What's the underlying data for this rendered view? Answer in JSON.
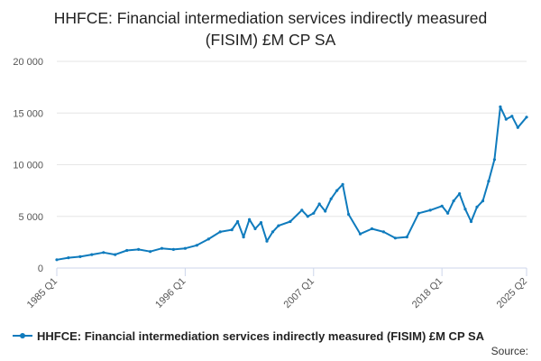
{
  "chart_data": {
    "type": "line",
    "title": "HHFCE: Financial intermediation services indirectly measured (FISIM) £M CP SA",
    "xlabel": "",
    "ylabel": "",
    "ylim": [
      0,
      20000
    ],
    "yticks": [
      0,
      5000,
      10000,
      15000,
      20000
    ],
    "ytick_labels": [
      "0",
      "5 000",
      "10 000",
      "15 000",
      "20 000"
    ],
    "xticks": [
      "1985 Q1",
      "1996 Q1",
      "2007 Q1",
      "2018 Q1",
      "2025 Q2"
    ],
    "grid": true,
    "legend_position": "bottom-left",
    "series": [
      {
        "name": "HHFCE: Financial intermediation services indirectly measured (FISIM) £M CP SA",
        "color": "#0f7bbd",
        "x": [
          "1985 Q1",
          "1986 Q1",
          "1987 Q1",
          "1988 Q1",
          "1989 Q1",
          "1990 Q1",
          "1991 Q1",
          "1992 Q1",
          "1993 Q1",
          "1994 Q1",
          "1995 Q1",
          "1996 Q1",
          "1997 Q1",
          "1998 Q1",
          "1999 Q1",
          "2000 Q1",
          "2000 Q3",
          "2001 Q1",
          "2001 Q3",
          "2002 Q1",
          "2002 Q3",
          "2003 Q1",
          "2003 Q3",
          "2004 Q1",
          "2005 Q1",
          "2006 Q1",
          "2006 Q3",
          "2007 Q1",
          "2007 Q3",
          "2008 Q1",
          "2008 Q3",
          "2009 Q1",
          "2009 Q3",
          "2010 Q1",
          "2011 Q1",
          "2012 Q1",
          "2013 Q1",
          "2014 Q1",
          "2015 Q1",
          "2016 Q1",
          "2017 Q1",
          "2018 Q1",
          "2018 Q3",
          "2019 Q1",
          "2019 Q3",
          "2020 Q1",
          "2020 Q3",
          "2021 Q1",
          "2021 Q3",
          "2022 Q1",
          "2022 Q3",
          "2023 Q1",
          "2023 Q3",
          "2024 Q1",
          "2024 Q3",
          "2025 Q2"
        ],
        "values": [
          800,
          1000,
          1100,
          1300,
          1500,
          1300,
          1700,
          1800,
          1600,
          1900,
          1800,
          1900,
          2200,
          2800,
          3500,
          3700,
          4500,
          3000,
          4700,
          3800,
          4400,
          2600,
          3500,
          4100,
          4500,
          5600,
          5000,
          5300,
          6200,
          5500,
          6700,
          7500,
          8100,
          5200,
          3300,
          3800,
          3500,
          2900,
          3000,
          5300,
          5600,
          6000,
          5300,
          6500,
          7200,
          5700,
          4500,
          5900,
          6500,
          8400,
          10500,
          15600,
          14400,
          14700,
          13600,
          14600
        ]
      }
    ]
  },
  "legend": {
    "label": "HHFCE: Financial intermediation services indirectly measured (FISIM) £M CP SA"
  },
  "source": {
    "label": "Source:"
  }
}
